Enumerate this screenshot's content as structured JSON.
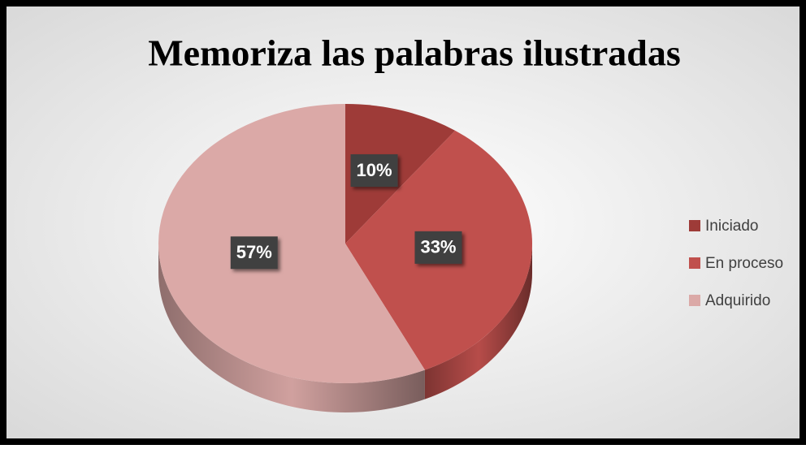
{
  "chart_data": {
    "type": "pie",
    "title": "Memoriza las palabras ilustradas",
    "categories": [
      "Iniciado",
      "En proceso",
      "Adquirido"
    ],
    "values": [
      10,
      33,
      57
    ],
    "value_labels": [
      "10%",
      "33%",
      "57%"
    ],
    "colors": [
      "#9e3b38",
      "#c0504d",
      "#dba9a7"
    ],
    "legend": "right"
  }
}
